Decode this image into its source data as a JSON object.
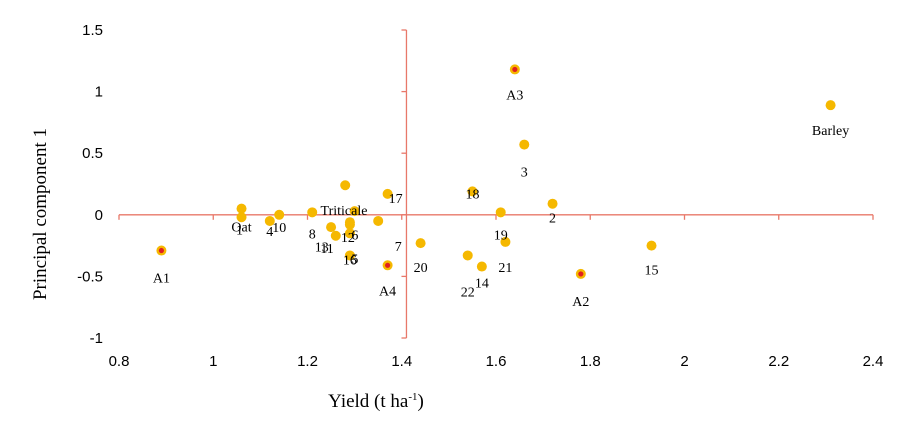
{
  "chart_data": {
    "type": "scatter",
    "xlabel": "Yield (t ha",
    "xlabel_sup": "-1",
    "xlabel_close": ")",
    "ylabel": "Principal component 1",
    "xlim": [
      0.8,
      2.4
    ],
    "ylim": [
      -1,
      1.5
    ],
    "x_ticks": [
      0.8,
      1,
      1.2,
      1.4,
      1.6,
      1.8,
      2,
      2.2,
      2.4
    ],
    "x_tick_labels": [
      "0.8",
      "1",
      "1.2",
      "1.4",
      "1.6",
      "1.8",
      "2",
      "2.2",
      "2.4"
    ],
    "y_ticks": [
      1.5,
      1,
      0.5,
      0,
      -0.5,
      -1
    ],
    "y_tick_labels": [
      "1.5",
      "1",
      "0.5",
      "0",
      "-0.5",
      "-1"
    ],
    "grid": false,
    "axes_cross_at": {
      "x": 1.41,
      "y": 0
    },
    "colors": {
      "axis": "#e8786a",
      "point_fill": "#f5b800",
      "highlight_center": "#e02020"
    },
    "points": [
      {
        "label": "Barley",
        "x": 2.31,
        "y": 0.89
      },
      {
        "label": "Oat",
        "x": 1.06,
        "y": 0.05
      },
      {
        "label": "Triticale",
        "x": 1.3,
        "y": 0.03
      },
      {
        "label": "A1",
        "x": 0.89,
        "y": -0.29,
        "highlight": true
      },
      {
        "label": "A2",
        "x": 1.78,
        "y": -0.48,
        "highlight": true
      },
      {
        "label": "A3",
        "x": 1.64,
        "y": 1.18,
        "highlight": true
      },
      {
        "label": "A4",
        "x": 1.37,
        "y": -0.41,
        "highlight": true
      },
      {
        "label": "1",
        "x": 1.06,
        "y": -0.02
      },
      {
        "label": "2",
        "x": 1.72,
        "y": 0.09
      },
      {
        "label": "3",
        "x": 1.66,
        "y": 0.57
      },
      {
        "label": "4",
        "x": 1.12,
        "y": -0.05
      },
      {
        "label": "5",
        "x": 1.29,
        "y": -0.33
      },
      {
        "label": "6",
        "x": 1.29,
        "y": -0.08
      },
      {
        "label": "7",
        "x": 1.35,
        "y": -0.05
      },
      {
        "label": "8",
        "x": 1.21,
        "y": 0.02
      },
      {
        "label": "10",
        "x": 1.14,
        "y": 0.0
      },
      {
        "label": "11",
        "x": 1.25,
        "y": -0.1
      },
      {
        "label": "12",
        "x": 1.29,
        "y": -0.06
      },
      {
        "label": "13",
        "x": 1.26,
        "y": -0.17
      },
      {
        "label": "14",
        "x": 1.57,
        "y": -0.42
      },
      {
        "label": "15",
        "x": 1.93,
        "y": -0.25
      },
      {
        "label": "16",
        "x": 1.29,
        "y": -0.15
      },
      {
        "label": "17",
        "x": 1.37,
        "y": 0.17
      },
      {
        "label": "18",
        "x": 1.55,
        "y": 0.19
      },
      {
        "label": "19",
        "x": 1.61,
        "y": 0.02
      },
      {
        "label": "20",
        "x": 1.44,
        "y": -0.23
      },
      {
        "label": "21",
        "x": 1.62,
        "y": -0.22
      },
      {
        "label": "22",
        "x": 1.54,
        "y": -0.33
      },
      {
        "label": "",
        "x": 1.28,
        "y": 0.24
      }
    ]
  }
}
